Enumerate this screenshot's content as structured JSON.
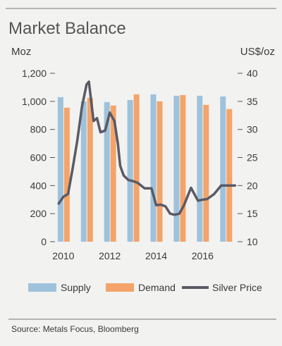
{
  "colors": {
    "background": "#f2f2f0",
    "supply": "#9fc2dc",
    "demand": "#f4a46a",
    "silver_price": "#5a5a66",
    "rule": "#777777",
    "text": "#3a3a3a"
  },
  "chart_data": {
    "type": "bar",
    "title": "Market Balance",
    "left_axis_unit": "Moz",
    "right_axis_unit": "US$/oz",
    "left_ylim": [
      0,
      1200
    ],
    "left_ticks": [
      "0",
      "200",
      "400",
      "600",
      "800",
      "1,000",
      "1,200"
    ],
    "right_ylim": [
      10,
      40
    ],
    "right_ticks": [
      "10",
      "15",
      "20",
      "25",
      "30",
      "35",
      "40"
    ],
    "x_tick_labels": [
      "2010",
      "2012",
      "2014",
      "2016"
    ],
    "categories": [
      "2010",
      "2011",
      "2012",
      "2013",
      "2014",
      "2015",
      "2016",
      "2017"
    ],
    "series": [
      {
        "name": "Supply",
        "kind": "bar",
        "axis": "left",
        "values": [
          1030,
          1000,
          995,
          1010,
          1050,
          1040,
          1040,
          1035
        ]
      },
      {
        "name": "Demand",
        "kind": "bar",
        "axis": "left",
        "values": [
          955,
          1025,
          970,
          1050,
          1000,
          1045,
          975,
          945
        ]
      },
      {
        "name": "Silver Price",
        "kind": "line",
        "axis": "right",
        "x": [
          2009.8,
          2010.0,
          2010.2,
          2010.4,
          2010.6,
          2010.8,
          2011.0,
          2011.1,
          2011.2,
          2011.3,
          2011.45,
          2011.6,
          2011.8,
          2012.0,
          2012.2,
          2012.35,
          2012.45,
          2012.6,
          2012.8,
          2013.0,
          2013.2,
          2013.5,
          2013.8,
          2014.0,
          2014.2,
          2014.4,
          2014.6,
          2014.8,
          2015.0,
          2015.2,
          2015.5,
          2015.8,
          2016.0,
          2016.2,
          2016.5,
          2016.8,
          2017.0,
          2017.2,
          2017.4
        ],
        "y": [
          16.8,
          18.0,
          18.5,
          23.0,
          28.0,
          34.0,
          38.0,
          38.5,
          35.0,
          31.5,
          32.0,
          29.5,
          29.8,
          33.0,
          31.5,
          27.5,
          23.5,
          21.8,
          21.0,
          20.8,
          20.5,
          19.5,
          19.5,
          16.5,
          16.6,
          16.3,
          15.0,
          14.8,
          15.0,
          16.5,
          19.6,
          17.3,
          17.5,
          17.6,
          18.5,
          20.0,
          20.0,
          20.0,
          20.0
        ]
      }
    ],
    "legend_position": "bottom",
    "grid": false
  },
  "legend": {
    "supply_label": "Supply",
    "demand_label": "Demand",
    "price_label": "Silver Price"
  },
  "source": "Source: Metals Focus, Bloomberg"
}
